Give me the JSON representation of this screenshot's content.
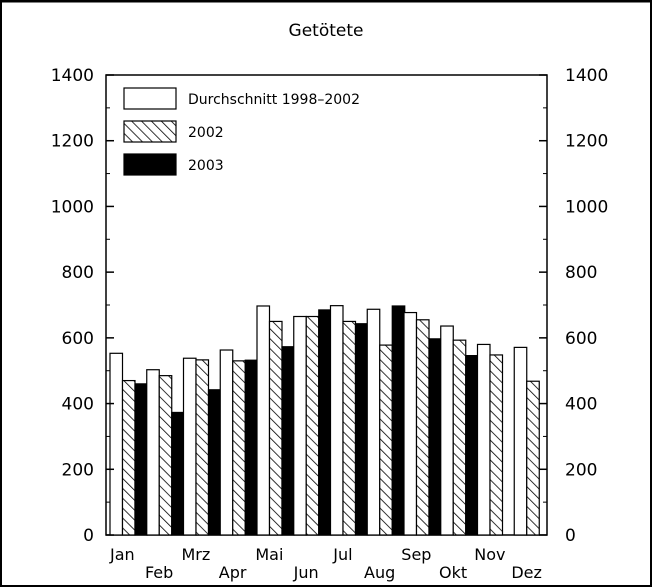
{
  "chart_data": {
    "type": "bar",
    "title": "Getötete",
    "categories": [
      "Jan",
      "Feb",
      "Mrz",
      "Apr",
      "Mai",
      "Jun",
      "Jul",
      "Aug",
      "Sep",
      "Okt",
      "Nov",
      "Dez"
    ],
    "series": [
      {
        "name": "Durchschnitt 1998–2002",
        "values": [
          553,
          503,
          538,
          563,
          697,
          665,
          698,
          687,
          677,
          636,
          580,
          571
        ],
        "fill": "white"
      },
      {
        "name": "2002",
        "values": [
          470,
          485,
          533,
          530,
          650,
          665,
          650,
          578,
          655,
          593,
          548,
          468
        ],
        "fill": "hatched"
      },
      {
        "name": "2003",
        "values": [
          460,
          373,
          442,
          532,
          573,
          685,
          643,
          697,
          597,
          546,
          null,
          null
        ],
        "fill": "black"
      }
    ],
    "ylim": [
      0,
      1400
    ],
    "yticks": [
      0,
      200,
      400,
      600,
      800,
      1000,
      1200,
      1400
    ],
    "minor_tick_step": 100,
    "xlabel": "",
    "ylabel": "",
    "secondary_y_axis": true,
    "grid": false,
    "legend_position": "top-left",
    "colors": {
      "outline": "#000000",
      "background": "#ffffff"
    }
  }
}
